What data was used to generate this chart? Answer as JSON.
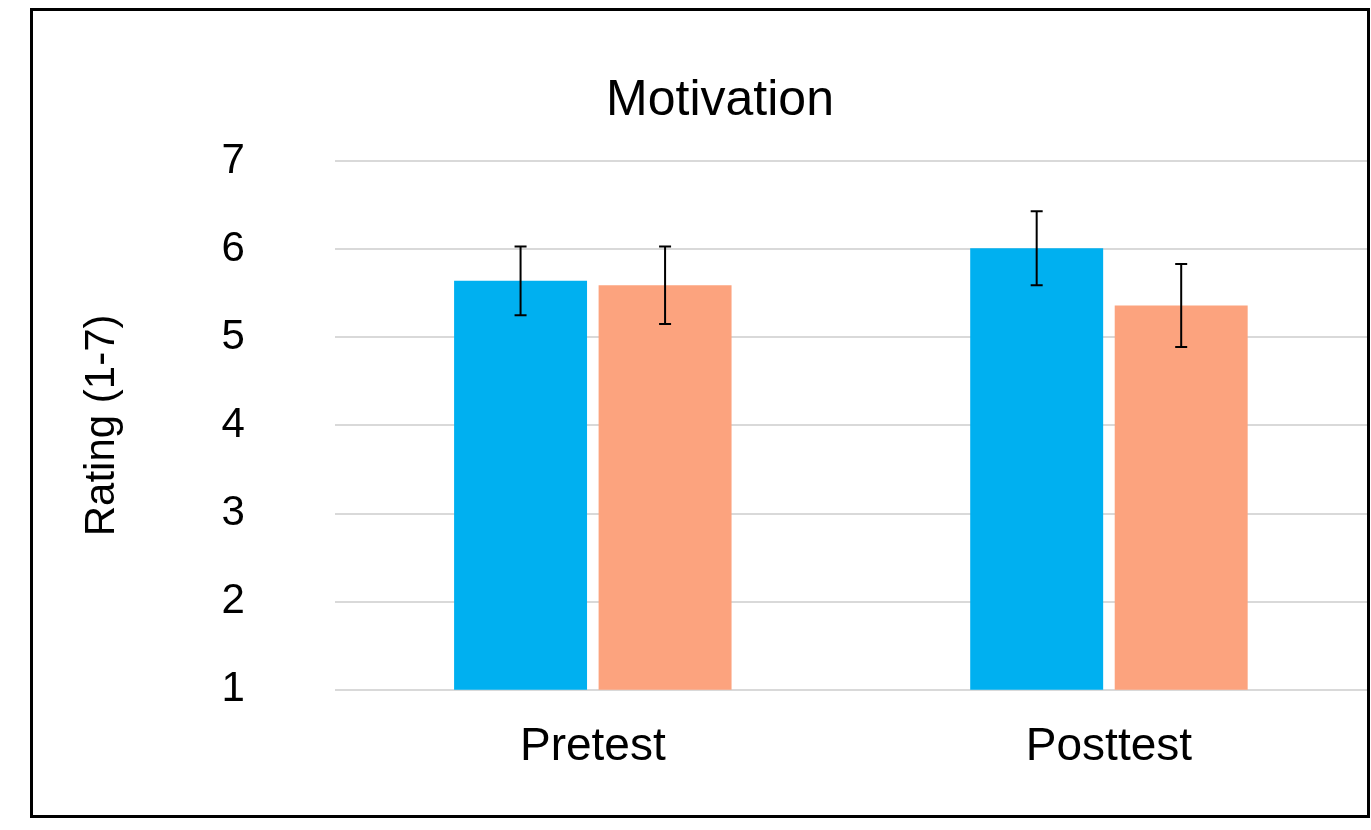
{
  "chart_data": {
    "type": "bar",
    "title": "Motivation",
    "ylabel": "Rating (1-7)",
    "categories": [
      "Pretest",
      "Posttest"
    ],
    "series": [
      {
        "color": "#00b0f0",
        "values": [
          5.64,
          6.01
        ],
        "errors": [
          0.39,
          0.42
        ]
      },
      {
        "color": "#fca37e",
        "values": [
          5.59,
          5.36
        ],
        "errors": [
          0.44,
          0.47
        ]
      }
    ],
    "ylim": [
      1,
      7
    ],
    "yticks": [
      1,
      2,
      3,
      4,
      5,
      6,
      7
    ],
    "grid": "y",
    "legend": false
  }
}
